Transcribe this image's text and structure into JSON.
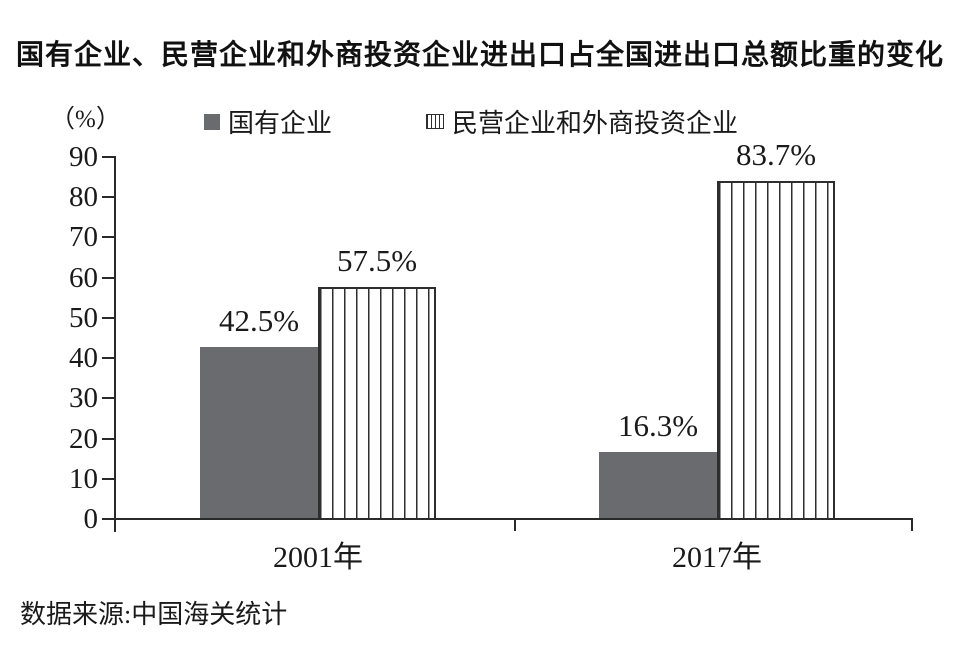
{
  "title": "国有企业、民营企业和外商投资企业进出口占全国进出口总额比重的变化",
  "unit_label": "（%）",
  "source": "数据来源:中国海关统计",
  "legend": {
    "items": [
      {
        "label": "国有企业",
        "swatch": "solid-gray-square"
      },
      {
        "label": "民营企业和外商投资企业",
        "swatch": "vertical-striped-square"
      }
    ]
  },
  "colors": {
    "background": "#ffffff",
    "text": "#1a1a1a",
    "axis": "#2a2a2a",
    "solid_bar": "#6a6b6e",
    "stripe_line": "#2e2e2e"
  },
  "chart_data": {
    "type": "bar",
    "categories": [
      "2001年",
      "2017年"
    ],
    "series": [
      {
        "name": "国有企业",
        "style": "solid",
        "values": [
          42.5,
          16.3
        ],
        "value_labels": [
          "42.5%",
          "16.3%"
        ]
      },
      {
        "name": "民营企业和外商投资企业",
        "style": "striped",
        "values": [
          57.5,
          83.7
        ],
        "value_labels": [
          "57.5%",
          "83.7%"
        ]
      }
    ],
    "ylabel": "（%）",
    "ylim": [
      0,
      90
    ],
    "yticks": [
      0,
      10,
      20,
      30,
      40,
      50,
      60,
      70,
      80,
      90
    ],
    "grid": false,
    "legend_position": "top"
  }
}
